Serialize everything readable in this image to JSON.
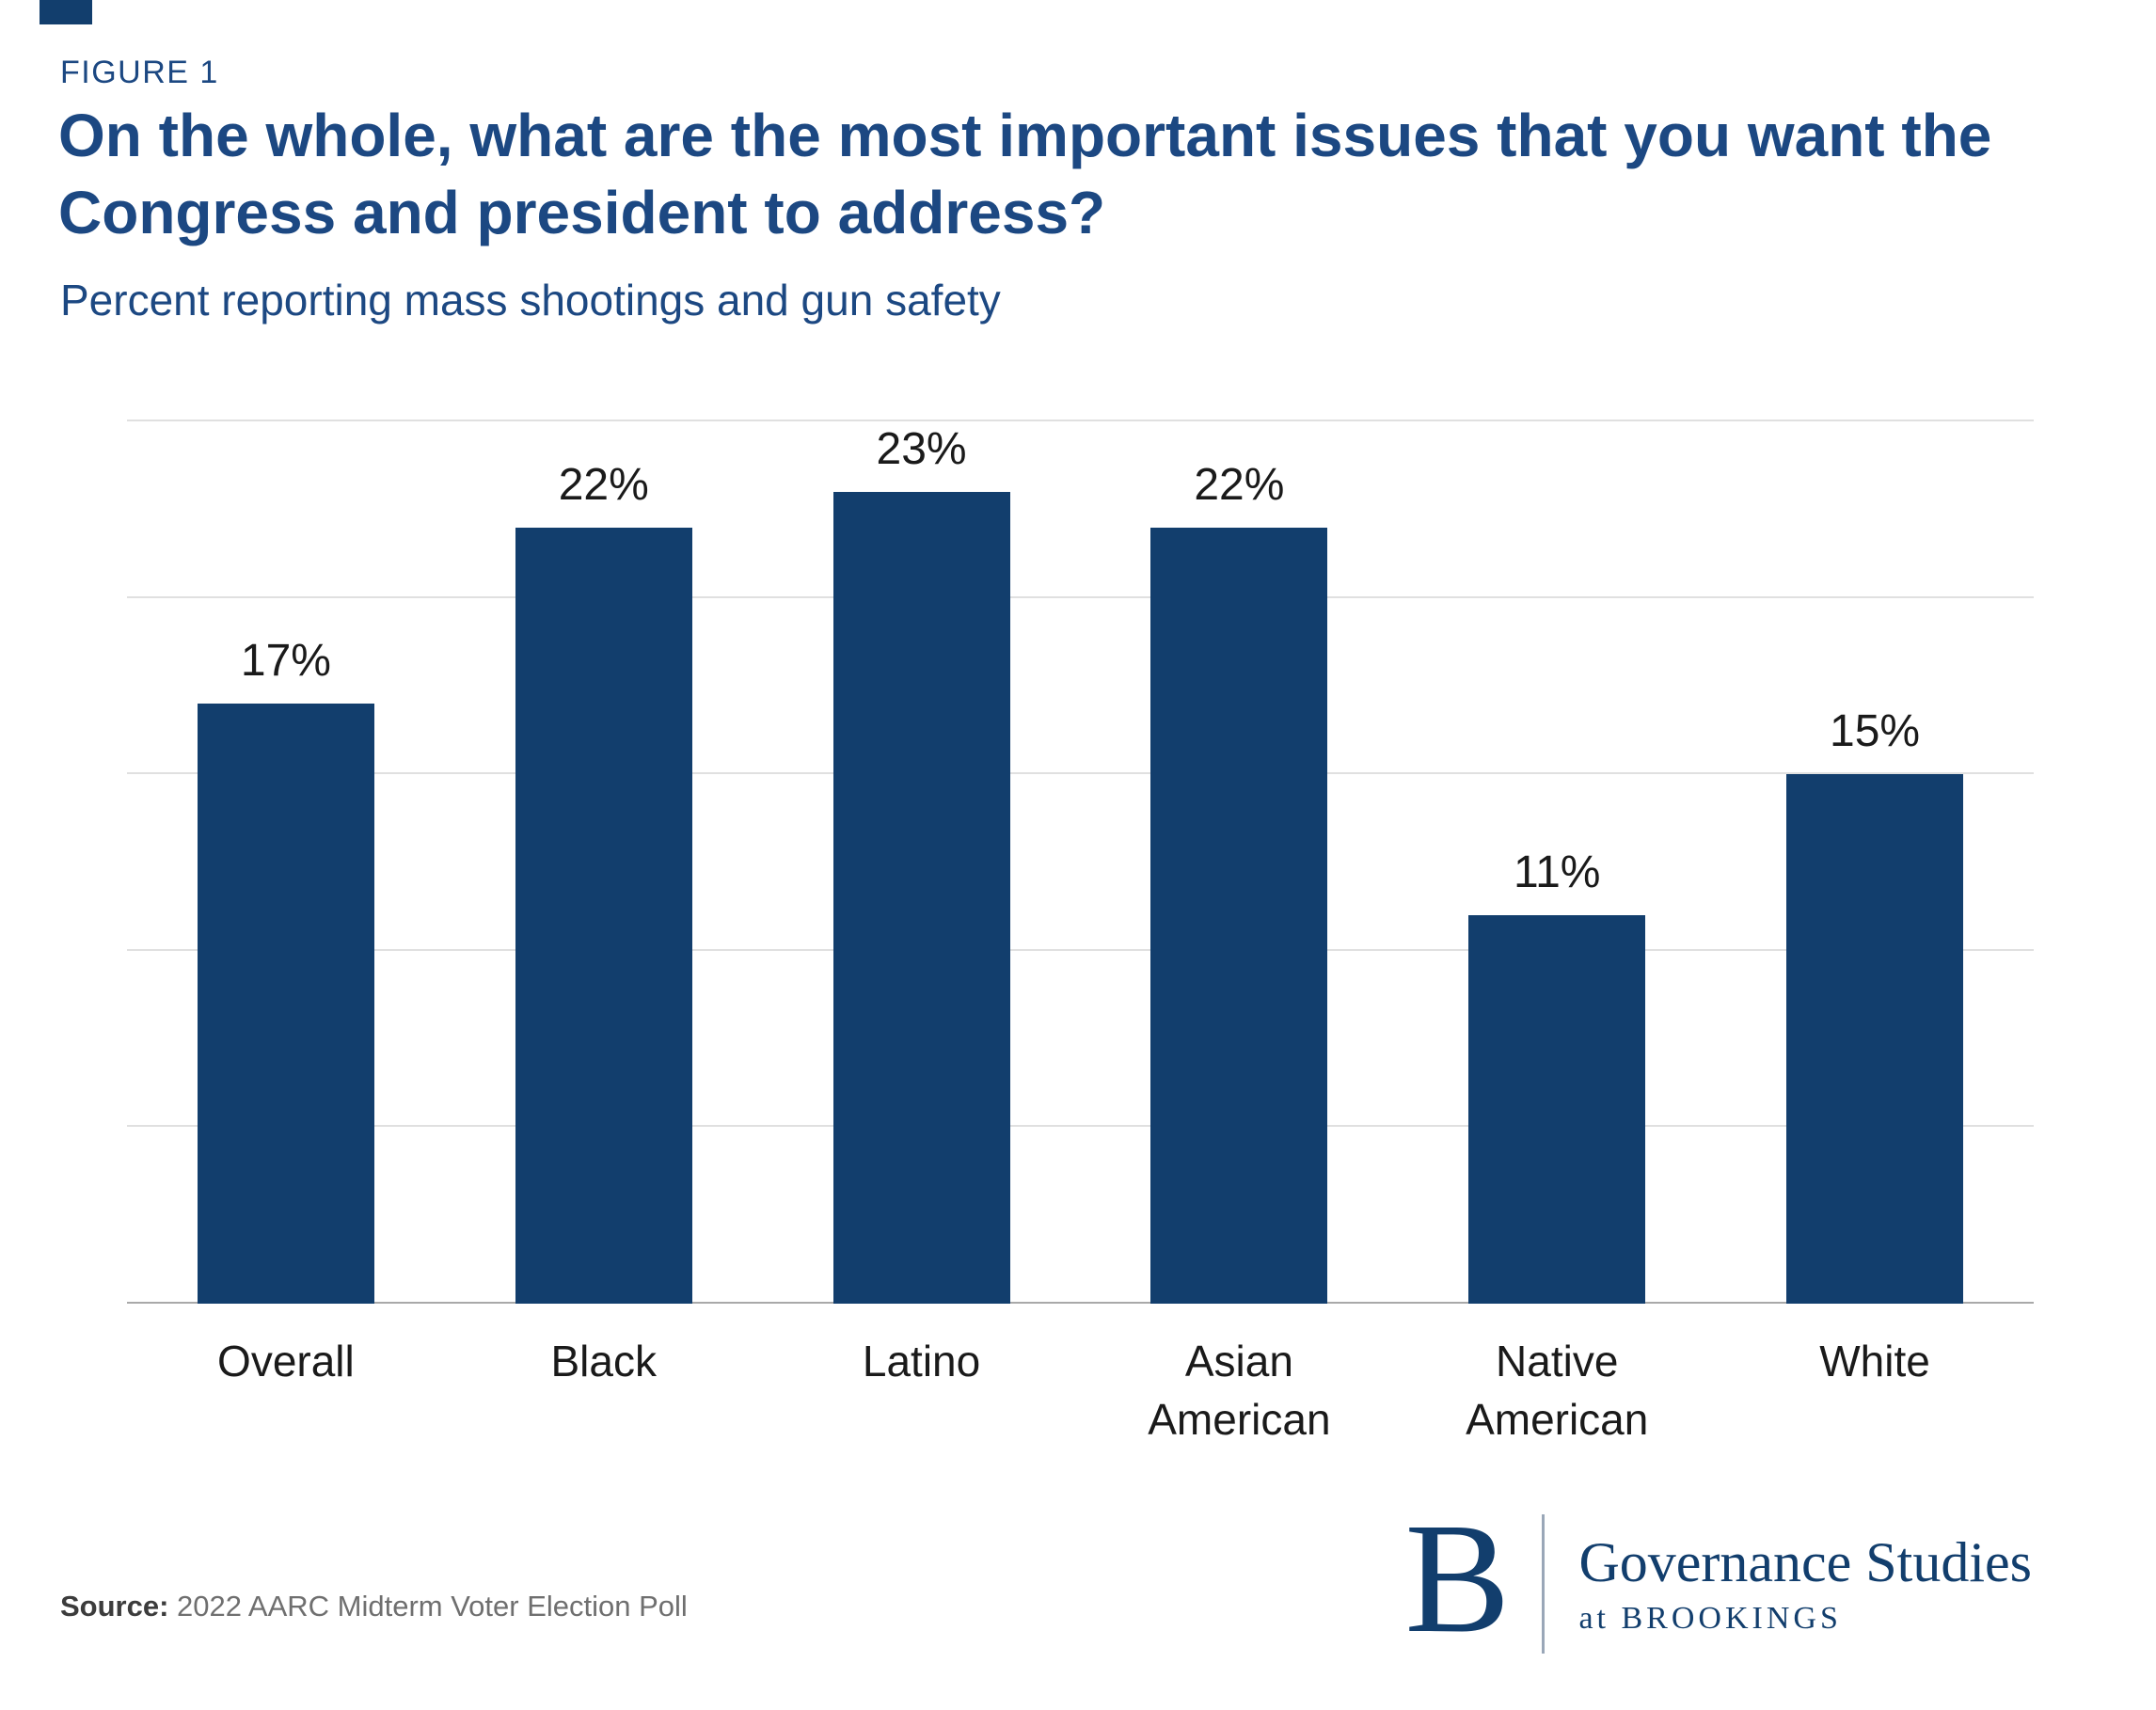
{
  "figure_label": "FIGURE 1",
  "title": "On the whole, what are the most important issues that you want the Congress and president to address?",
  "subtitle": "Percent reporting mass shootings and gun safety",
  "source": {
    "label": "Source:",
    "text": "2022 AARC Midterm Voter Election Poll"
  },
  "brand": {
    "letter": "B",
    "name": "Governance Studies",
    "sub": "at BROOKINGS"
  },
  "colors": {
    "bar": "#123e6d",
    "heading": "#1c4882",
    "gridline": "#e0e0e0",
    "baseline": "#a9a9a9"
  },
  "chart_data": {
    "type": "bar",
    "title": "On the whole, what are the most important issues that you want the Congress and president to address?",
    "subtitle": "Percent reporting mass shootings and gun safety",
    "categories": [
      "Overall",
      "Black",
      "Latino",
      "Asian American",
      "Native American",
      "White"
    ],
    "values": [
      17,
      22,
      23,
      22,
      11,
      15
    ],
    "data_labels": [
      "17%",
      "22%",
      "23%",
      "22%",
      "11%",
      "15%"
    ],
    "xlabel": "",
    "ylabel": "Percent reporting mass shootings and gun safety",
    "ylim": [
      0,
      25
    ],
    "gridlines": [
      5,
      10,
      15,
      20,
      25
    ],
    "grid": "horizontal",
    "legend": "none"
  }
}
